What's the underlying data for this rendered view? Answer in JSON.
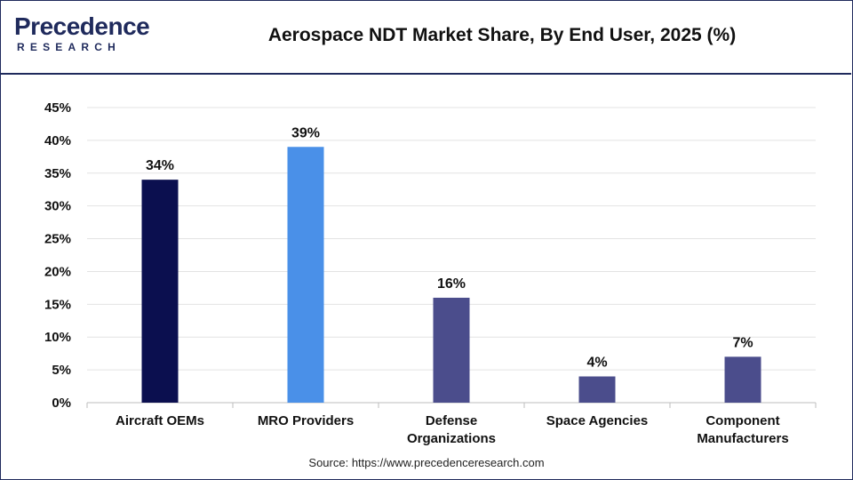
{
  "header": {
    "logo_word": "Precedence",
    "logo_sub": "RESEARCH",
    "title": "Aerospace NDT Market Share, By End User, 2025 (%)"
  },
  "footer": {
    "source": "Source: https://www.precedenceresearch.com"
  },
  "colors": {
    "aircraft_oems": "#0b0f4f",
    "mro_providers": "#4a90e8",
    "others": "#4b4d8c",
    "border": "#1f2a5c"
  },
  "chart_data": {
    "type": "bar",
    "title": "Aerospace NDT Market Share, By End User, 2025 (%)",
    "categories": [
      [
        "Aircraft OEMs"
      ],
      [
        "MRO Providers"
      ],
      [
        "Defense",
        "Organizations"
      ],
      [
        "Space Agencies"
      ],
      [
        "Component",
        "Manufacturers"
      ]
    ],
    "values": [
      34,
      39,
      16,
      4,
      7
    ],
    "data_labels": [
      "34%",
      "39%",
      "16%",
      "4%",
      "7%"
    ],
    "bar_colors": [
      "#0b0f4f",
      "#4a90e8",
      "#4b4d8c",
      "#4b4d8c",
      "#4b4d8c"
    ],
    "ylim": [
      0,
      45
    ],
    "yticks": [
      0,
      5,
      10,
      15,
      20,
      25,
      30,
      35,
      40,
      45
    ],
    "ytick_labels": [
      "0%",
      "5%",
      "10%",
      "15%",
      "20%",
      "25%",
      "30%",
      "35%",
      "40%",
      "45%"
    ],
    "xlabel": "",
    "ylabel": "",
    "grid": true,
    "legend": "none"
  }
}
